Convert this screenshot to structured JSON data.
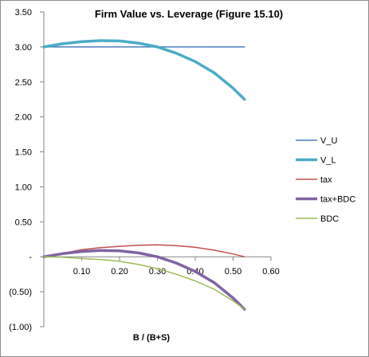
{
  "chart_data": {
    "type": "line",
    "title": "Firm Value vs. Leverage (Figure 15.10)",
    "xlabel": "B / (B+S)",
    "ylabel": "",
    "xlim": [
      0,
      0.6
    ],
    "ylim": [
      -1.0,
      3.5
    ],
    "xticks": [
      "0.10",
      "0.20",
      "0.30",
      "0.40",
      "0.50",
      "0.60"
    ],
    "xtick_values": [
      0.1,
      0.2,
      0.3,
      0.4,
      0.5,
      0.6
    ],
    "yticks": [
      "3.50",
      "3.00",
      "2.50",
      "2.00",
      "1.50",
      "1.00",
      "0.50",
      "-",
      "(0.50)",
      "(1.00)"
    ],
    "ytick_values": [
      3.5,
      3.0,
      2.5,
      2.0,
      1.5,
      1.0,
      0.5,
      0,
      -0.5,
      -1.0
    ],
    "grid": false,
    "legend_position": "right",
    "x": [
      0,
      0.05,
      0.1,
      0.15,
      0.2,
      0.25,
      0.3,
      0.35,
      0.4,
      0.45,
      0.5,
      0.53
    ],
    "series": [
      {
        "name": "V_U",
        "color": "#4a7ebb",
        "width": 1.5,
        "values": [
          3.0,
          3.0,
          3.0,
          3.0,
          3.0,
          3.0,
          3.0,
          3.0,
          3.0,
          3.0,
          3.0,
          3.0
        ]
      },
      {
        "name": "V_L",
        "color": "#4bacc6",
        "width": 3.5,
        "values": [
          3.0,
          3.045,
          3.075,
          3.09,
          3.085,
          3.055,
          3.0,
          2.91,
          2.79,
          2.63,
          2.41,
          2.25
        ]
      },
      {
        "name": "tax",
        "color": "#c0504d",
        "width": 1.5,
        "values": [
          0,
          0.05,
          0.1,
          0.13,
          0.15,
          0.165,
          0.17,
          0.16,
          0.135,
          0.095,
          0.04,
          0
        ]
      },
      {
        "name": "tax+BDC",
        "color": "#8064a2",
        "width": 3.5,
        "values": [
          0,
          0.045,
          0.075,
          0.09,
          0.085,
          0.055,
          0.0,
          -0.09,
          -0.21,
          -0.37,
          -0.59,
          -0.75
        ]
      },
      {
        "name": "BDC",
        "color": "#9bbb59",
        "width": 1.5,
        "values": [
          0,
          -0.005,
          -0.025,
          -0.04,
          -0.065,
          -0.11,
          -0.17,
          -0.25,
          -0.345,
          -0.465,
          -0.63,
          -0.75
        ]
      }
    ]
  }
}
